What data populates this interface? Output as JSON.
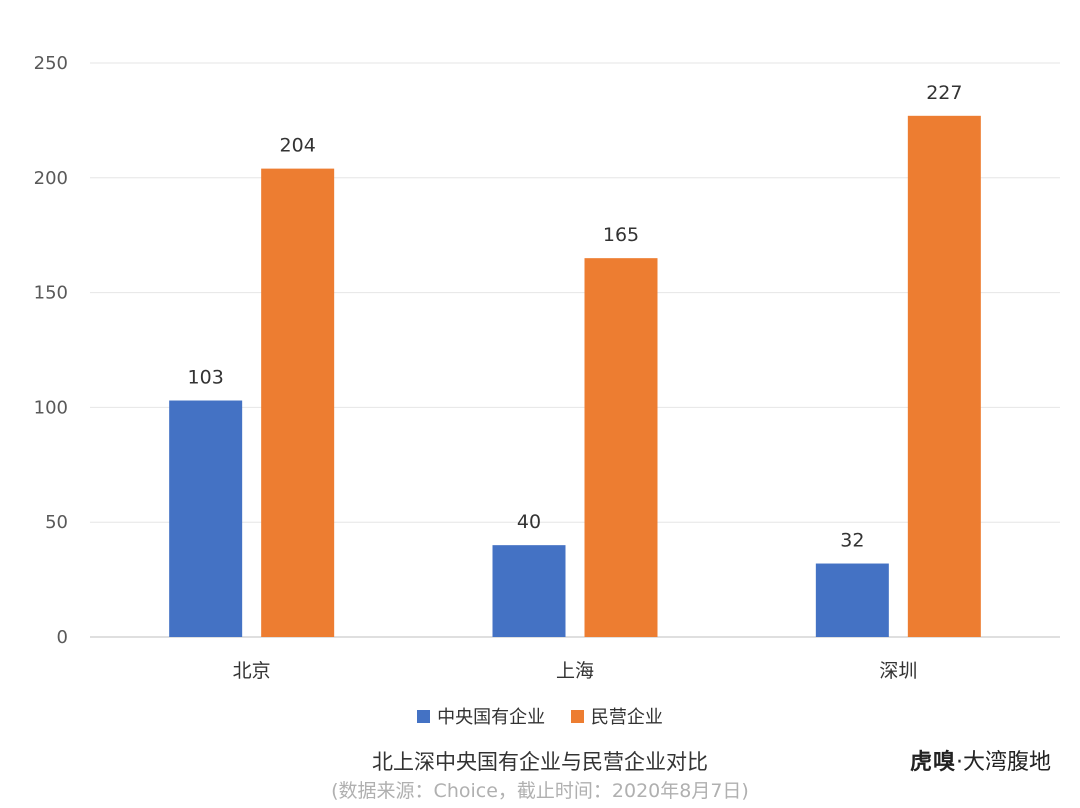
{
  "chart_data": {
    "type": "bar",
    "categories": [
      "北京",
      "上海",
      "深圳"
    ],
    "series": [
      {
        "name": "中央国有企业",
        "color": "#4472c4",
        "values": [
          103,
          40,
          32
        ]
      },
      {
        "name": "民营企业",
        "color": "#ed7d31",
        "values": [
          204,
          165,
          227
        ]
      }
    ],
    "ylim": [
      0,
      250
    ],
    "yticks": [
      0,
      50,
      100,
      150,
      200,
      250
    ],
    "grid": true,
    "legend_position": "bottom",
    "title": "北上深中央国有企业与民营企业对比",
    "subtitle": "(数据来源：Choice，截止时间：2020年8月7日)"
  },
  "branding": {
    "logo_text": "虎嗅",
    "name": "·大湾腹地"
  }
}
